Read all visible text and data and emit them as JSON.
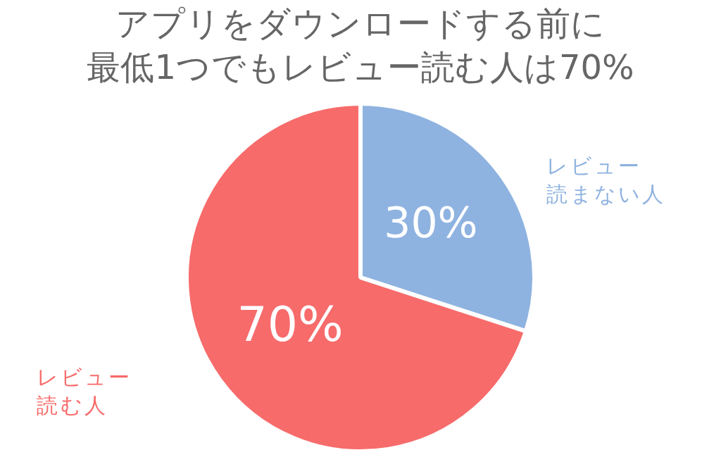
{
  "chart_data": {
    "type": "pie",
    "title": "アプリをダウンロードする前に",
    "subtitle": "最低1つでもレビュー読む人は70%",
    "categories": [
      "レビュー読まない人",
      "レビュー読む人"
    ],
    "values": [
      30,
      70
    ],
    "colors": [
      "#8fb3e0",
      "#f76b6b"
    ],
    "value_labels": [
      "30%",
      "70%"
    ],
    "legend": false
  }
}
